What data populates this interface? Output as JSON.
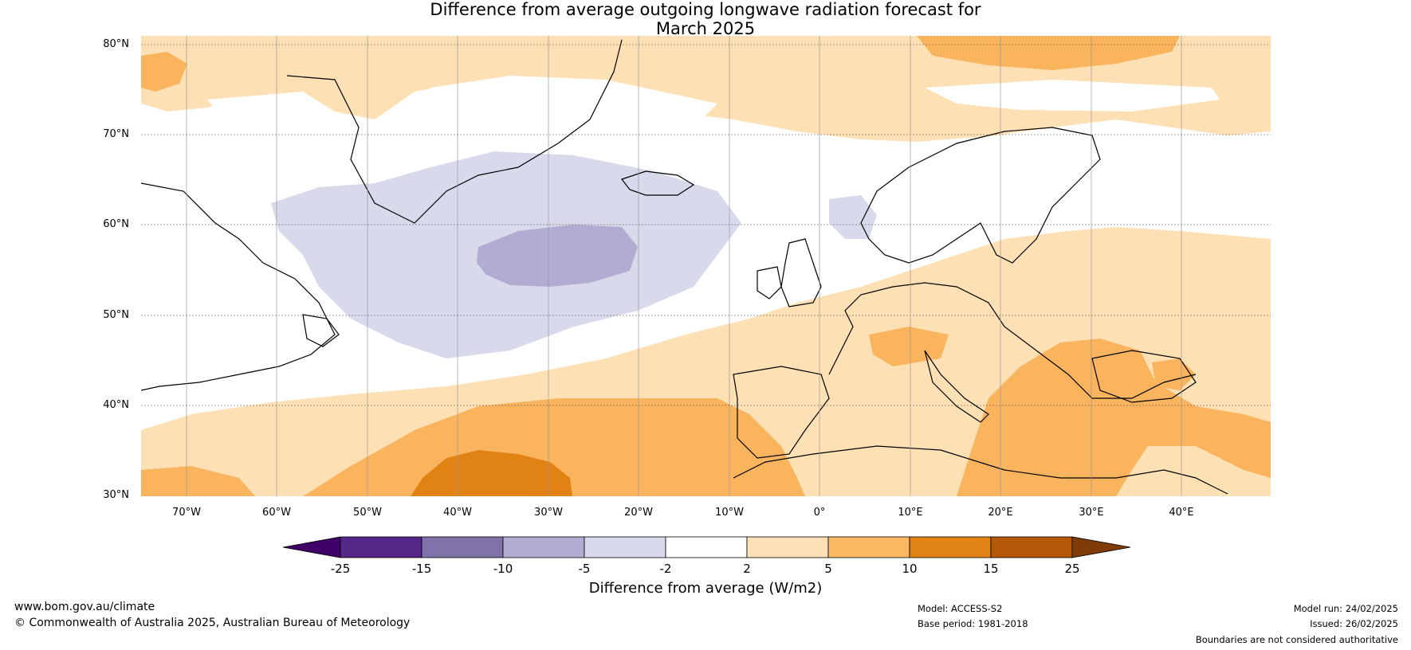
{
  "title": {
    "line1": "Difference from average outgoing longwave radiation forecast for",
    "line2": "March 2025"
  },
  "map": {
    "lat_labels": [
      "80°N",
      "70°N",
      "60°N",
      "50°N",
      "40°N",
      "30°N"
    ],
    "lon_labels": [
      "70°W",
      "60°W",
      "50°W",
      "40°W",
      "30°W",
      "20°W",
      "10°W",
      "0°",
      "10°E",
      "20°E",
      "30°E",
      "40°E"
    ],
    "colors": {
      "land_outline": "#000000",
      "border": "#808080",
      "positive_light": "#fde0b3",
      "positive_mid": "#fbb45e",
      "positive_strong": "#e08214",
      "negative_light": "#d8daeb",
      "negative_mid": "#b2abd2"
    }
  },
  "colorbar": {
    "ticks": [
      "-25",
      "-15",
      "-10",
      "-5",
      "-2",
      "2",
      "5",
      "10",
      "15",
      "25"
    ],
    "colors": [
      "#3f0068",
      "#542788",
      "#8073ac",
      "#b2abd2",
      "#d8daeb",
      "#ffffff",
      "#fee0b6",
      "#fdb863",
      "#e08214",
      "#b35806",
      "#7f3b08"
    ],
    "label": "Difference from average (W/m2)"
  },
  "footer": {
    "website": "www.bom.gov.au/climate",
    "copyright": "© Commonwealth of Australia 2025, Australian Bureau of Meteorology",
    "model": "Model: ACCESS-S2",
    "base_period": "Base period: 1981-2018",
    "model_run": "Model run: 24/02/2025",
    "issued": "Issued: 26/02/2025",
    "disclaimer": "Boundaries are not considered authoritative"
  }
}
